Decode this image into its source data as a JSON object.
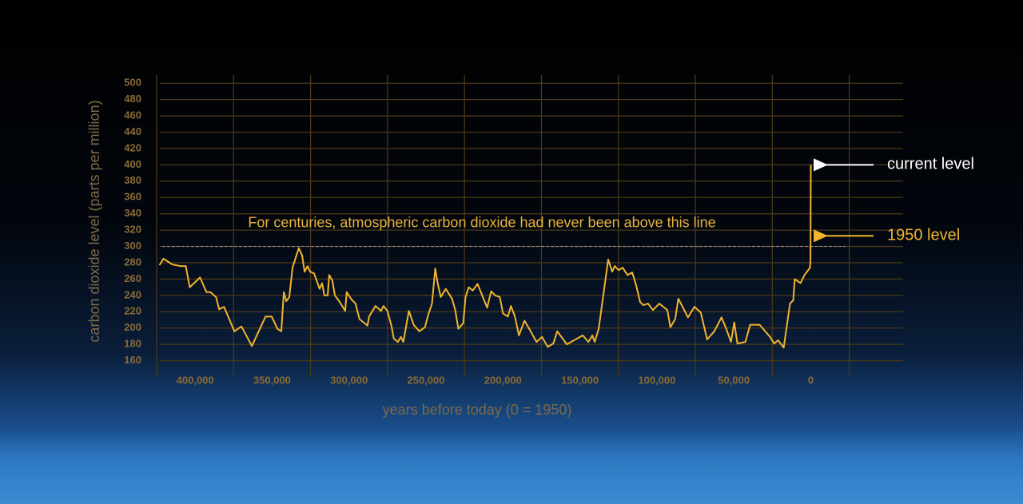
{
  "chart_data": {
    "type": "line",
    "y_label": "carbon dioxide level (parts per million)",
    "x_label": "years before today (0 = 1950)",
    "color": "#f2b42c",
    "grid": true,
    "x_reversed": true,
    "xlim": [
      425000,
      -60000
    ],
    "ylim": [
      140,
      510
    ],
    "xticks": [
      {
        "value": 400000,
        "label": "400,000"
      },
      {
        "value": 350000,
        "label": "350,000"
      },
      {
        "value": 300000,
        "label": "300,000"
      },
      {
        "value": 250000,
        "label": "250,000"
      },
      {
        "value": 200000,
        "label": "200,000"
      },
      {
        "value": 150000,
        "label": "150,000"
      },
      {
        "value": 100000,
        "label": "100,000"
      },
      {
        "value": 50000,
        "label": "50,000"
      },
      0
    ],
    "yticks": [
      160,
      180,
      200,
      220,
      240,
      260,
      280,
      300,
      320,
      340,
      360,
      380,
      400,
      420,
      440,
      460,
      480,
      500
    ],
    "threshold": {
      "value": 300,
      "label": "For centuries, atmospheric carbon dioxide had never been above this line"
    },
    "annotations": [
      {
        "text": "current level",
        "value": 400,
        "color": "#ffffff"
      },
      {
        "text": "1950 level",
        "value": 313,
        "color": "#f2b42c"
      }
    ],
    "x": [
      423200,
      420600,
      414900,
      409700,
      406100,
      403500,
      396800,
      392600,
      390100,
      386400,
      384400,
      381200,
      374500,
      369900,
      363100,
      354300,
      350200,
      346500,
      344000,
      342400,
      340800,
      338800,
      336700,
      332600,
      330500,
      328900,
      326900,
      325300,
      322700,
      319100,
      317500,
      316000,
      313900,
      312900,
      310800,
      309200,
      306100,
      302500,
      301500,
      298400,
      295800,
      293200,
      288000,
      287000,
      282800,
      279200,
      277600,
      275100,
      272500,
      270900,
      268300,
      266300,
      264700,
      263100,
      261100,
      258000,
      254300,
      250700,
      248600,
      246100,
      244000,
      242400,
      240400,
      237200,
      233100,
      231000,
      229000,
      225800,
      224300,
      222200,
      219600,
      216500,
      213900,
      210300,
      207700,
      205100,
      202000,
      200000,
      196800,
      194800,
      192200,
      189600,
      186000,
      182300,
      178200,
      174600,
      170900,
      167300,
      164700,
      158500,
      148100,
      144500,
      141900,
      140400,
      137800,
      131600,
      129000,
      127400,
      124800,
      122200,
      119100,
      116000,
      113400,
      110900,
      108800,
      105700,
      102600,
      98400,
      93200,
      91200,
      88100,
      86000,
      79800,
      75600,
      71500,
      67300,
      62700,
      58000,
      54900,
      51800,
      49700,
      47700,
      42500,
      39400,
      33200,
      26400,
      23800,
      21200,
      17600,
      13500,
      11400,
      10400,
      6700,
      4100,
      500,
      200,
      0
    ],
    "values": [
      277,
      285,
      278,
      276,
      276,
      250,
      262,
      244,
      244,
      238,
      223,
      226,
      196,
      202,
      178,
      214,
      214,
      199,
      196,
      244,
      233,
      238,
      274,
      298,
      289,
      269,
      276,
      269,
      267,
      248,
      255,
      240,
      240,
      265,
      258,
      240,
      232,
      221,
      244,
      235,
      230,
      211,
      203,
      214,
      227,
      221,
      227,
      221,
      203,
      187,
      183,
      189,
      183,
      200,
      221,
      204,
      196,
      201,
      216,
      230,
      273,
      255,
      238,
      248,
      236,
      222,
      199,
      206,
      238,
      250,
      246,
      254,
      242,
      225,
      245,
      240,
      238,
      218,
      214,
      227,
      214,
      191,
      209,
      197,
      183,
      189,
      177,
      181,
      196,
      180,
      191,
      183,
      191,
      183,
      199,
      284,
      269,
      276,
      271,
      274,
      265,
      268,
      252,
      232,
      228,
      230,
      222,
      230,
      222,
      201,
      211,
      236,
      213,
      226,
      219,
      186,
      196,
      213,
      199,
      183,
      207,
      181,
      183,
      204,
      204,
      189,
      181,
      185,
      176,
      230,
      234,
      260,
      255,
      265,
      274,
      284,
      400
    ]
  }
}
